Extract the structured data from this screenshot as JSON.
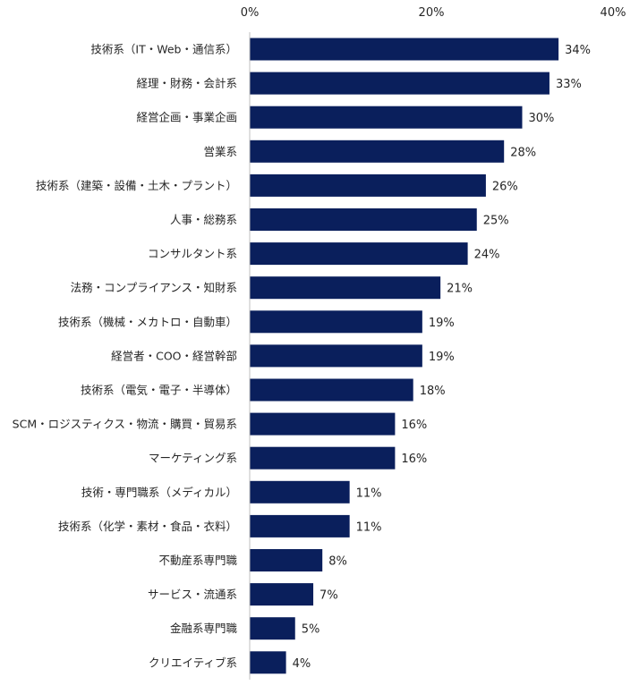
{
  "chart_data": {
    "type": "bar",
    "orientation": "horizontal",
    "title": "",
    "xlabel": "",
    "ylabel": "",
    "xlim": [
      0,
      40
    ],
    "ticks": [
      0,
      20,
      40
    ],
    "tick_labels": [
      "0%",
      "20%",
      "40%"
    ],
    "grid": false,
    "legend": "none",
    "bar_color": "#0a1f5c",
    "axis_color": "#bfbfbf",
    "categories": [
      "技術系（IT・Web・通信系）",
      "経理・財務・会計系",
      "経営企画・事業企画",
      "営業系",
      "技術系（建築・設備・土木・プラント）",
      "人事・総務系",
      "コンサルタント系",
      "法務・コンプライアンス・知財系",
      "技術系（機械・メカトロ・自動車）",
      "経営者・COO・経営幹部",
      "技術系（電気・電子・半導体）",
      "SCM・ロジスティクス・物流・購買・貿易系",
      "マーケティング系",
      "技術・専門職系（メディカル）",
      "技術系（化学・素材・食品・衣料）",
      "不動産系専門職",
      "サービス・流通系",
      "金融系専門職",
      "クリエイティブ系"
    ],
    "values": [
      34,
      33,
      30,
      28,
      26,
      25,
      24,
      21,
      19,
      19,
      18,
      16,
      16,
      11,
      11,
      8,
      7,
      5,
      4
    ],
    "value_labels": [
      "34%",
      "33%",
      "30%",
      "28%",
      "26%",
      "25%",
      "24%",
      "21%",
      "19%",
      "19%",
      "18%",
      "16%",
      "16%",
      "11%",
      "11%",
      "8%",
      "7%",
      "5%",
      "4%"
    ]
  }
}
